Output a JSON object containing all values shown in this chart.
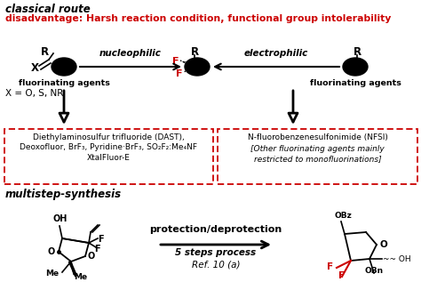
{
  "title_line1": "classical route",
  "title_line2": "disadvantage: Harsh reaction condition, functional group intolerability",
  "color_black": "#000000",
  "color_red": "#cc0000",
  "background": "#ffffff",
  "box1_text_line1": "Diethylaminosulfur trifluoride (DAST),",
  "box1_text_line2": "Deoxofluor, BrF₃, Pyridine·BrF₃, SO₂F₂:Me₄NF",
  "box1_text_line3": "XtalFluor-E",
  "box2_text_line1": "N-fluorobenzenesulfonimide (NFSI)",
  "box2_text_line2": "[Other fluorinating agents mainly",
  "box2_text_line3": "restricted to monofluorinations]",
  "nucleophilic_label": "nucleophilic",
  "fluorinating_agents": "fluorinating agents",
  "electrophilic_label": "electrophilic",
  "multistep_label": "multistep-synthesis",
  "protection_label": "protection/deprotection",
  "steps_label": "5 steps process",
  "ref_label": "Ref. 10 (a)",
  "x_label": "X = O, S, NR"
}
